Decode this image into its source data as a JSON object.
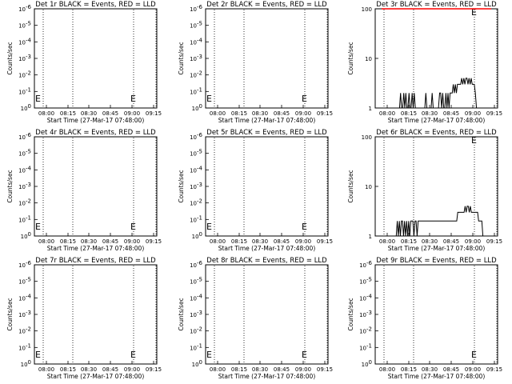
{
  "chart_data": [
    {
      "type": "line",
      "title": "Det 1r BLACK = Events, RED = LLD",
      "xlabel": "Start Time (27-Mar-17 07:48:00)",
      "ylabel": "Counts/sec",
      "y_scale": "log",
      "y_ticks": [
        {
          "base": "10",
          "exp": "0"
        },
        {
          "base": "10",
          "exp": "-1"
        },
        {
          "base": "10",
          "exp": "-2"
        },
        {
          "base": "10",
          "exp": "-3"
        },
        {
          "base": "10",
          "exp": "-4"
        },
        {
          "base": "10",
          "exp": "-5"
        },
        {
          "base": "10",
          "exp": "-6"
        }
      ],
      "x_ticks": [
        "08:00",
        "08:15",
        "08:30",
        "08:45",
        "09:00",
        "09:15"
      ],
      "markers": [
        "E",
        "E"
      ],
      "series": []
    },
    {
      "type": "line",
      "title": "Det 2r BLACK = Events, RED = LLD",
      "xlabel": "Start Time (27-Mar-17 07:48:00)",
      "ylabel": "Counts/sec",
      "y_scale": "log",
      "y_ticks": [
        {
          "base": "10",
          "exp": "0"
        },
        {
          "base": "10",
          "exp": "-1"
        },
        {
          "base": "10",
          "exp": "-2"
        },
        {
          "base": "10",
          "exp": "-3"
        },
        {
          "base": "10",
          "exp": "-4"
        },
        {
          "base": "10",
          "exp": "-5"
        },
        {
          "base": "10",
          "exp": "-6"
        }
      ],
      "x_ticks": [
        "08:00",
        "08:15",
        "08:30",
        "08:45",
        "09:00",
        "09:15"
      ],
      "markers": [
        "E",
        "E"
      ],
      "series": []
    },
    {
      "type": "line",
      "title": "Det 3r BLACK = Events, RED = LLD",
      "xlabel": "Start Time (27-Mar-17 07:48:00)",
      "ylabel": "Counts/sec",
      "y_scale": "log",
      "y_ticks": [
        {
          "base": "1",
          "exp": ""
        },
        {
          "base": "10",
          "exp": ""
        },
        {
          "base": "100",
          "exp": ""
        }
      ],
      "x_ticks": [
        "08:00",
        "08:15",
        "08:30",
        "08:45",
        "09:00",
        "09:15"
      ],
      "markers": [
        "E"
      ],
      "series": [
        {
          "color": "#000000",
          "values": [
            1,
            1,
            1,
            1,
            1,
            1,
            1,
            1,
            1,
            1,
            1,
            1,
            1,
            1,
            1,
            1,
            1,
            1,
            2,
            1,
            1,
            2,
            1,
            2,
            1,
            1,
            2,
            1,
            1,
            2,
            1,
            2,
            1,
            1,
            1,
            1,
            1,
            1,
            1,
            1,
            1,
            1,
            2,
            1,
            1,
            1,
            1,
            1,
            2,
            1,
            1,
            1,
            1,
            1,
            1,
            2,
            2,
            1,
            2,
            1,
            1,
            2,
            1,
            2,
            1,
            2,
            2,
            2,
            3,
            2,
            3,
            2,
            3,
            3,
            3,
            3,
            4,
            3,
            4,
            3,
            4,
            4,
            3,
            4,
            3,
            4,
            3,
            3,
            3,
            2,
            1,
            1,
            1,
            1,
            1,
            1,
            1,
            1,
            1,
            1,
            1,
            1,
            1,
            1,
            1
          ]
        },
        {
          "color": "#ff0000",
          "values": [
            100,
            100,
            100,
            100,
            100,
            100,
            100,
            100,
            100,
            100,
            100,
            100,
            100,
            100,
            100,
            100,
            100,
            100,
            100,
            100,
            100,
            100,
            100,
            100,
            100,
            100,
            100,
            100,
            100,
            100,
            100,
            100,
            100,
            100,
            100,
            100,
            100,
            100,
            100,
            100,
            100,
            100,
            100,
            100,
            100,
            100,
            100,
            100,
            100,
            100,
            100,
            100,
            100,
            100,
            100,
            100,
            100,
            100,
            100,
            100,
            100,
            100,
            100,
            100,
            100,
            100,
            100,
            100,
            100,
            100,
            100,
            100,
            100,
            100,
            100,
            100,
            100,
            100,
            100,
            100,
            100,
            100,
            100,
            100,
            100,
            100,
            100,
            100,
            100,
            100,
            100,
            100,
            100,
            100,
            100,
            100,
            100,
            100,
            100,
            100,
            100,
            100,
            100,
            100,
            100
          ]
        }
      ]
    },
    {
      "type": "line",
      "title": "Det 4r BLACK = Events, RED = LLD",
      "xlabel": "Start Time (27-Mar-17 07:48:00)",
      "ylabel": "Counts/sec",
      "y_scale": "log",
      "y_ticks": [
        {
          "base": "10",
          "exp": "0"
        },
        {
          "base": "10",
          "exp": "-1"
        },
        {
          "base": "10",
          "exp": "-2"
        },
        {
          "base": "10",
          "exp": "-3"
        },
        {
          "base": "10",
          "exp": "-4"
        },
        {
          "base": "10",
          "exp": "-5"
        },
        {
          "base": "10",
          "exp": "-6"
        }
      ],
      "x_ticks": [
        "08:00",
        "08:15",
        "08:30",
        "08:45",
        "09:00",
        "09:15"
      ],
      "markers": [
        "E",
        "E"
      ],
      "series": []
    },
    {
      "type": "line",
      "title": "Det 5r BLACK = Events, RED = LLD",
      "xlabel": "Start Time (27-Mar-17 07:48:00)",
      "ylabel": "Counts/sec",
      "y_scale": "log",
      "y_ticks": [
        {
          "base": "10",
          "exp": "0"
        },
        {
          "base": "10",
          "exp": "-1"
        },
        {
          "base": "10",
          "exp": "-2"
        },
        {
          "base": "10",
          "exp": "-3"
        },
        {
          "base": "10",
          "exp": "-4"
        },
        {
          "base": "10",
          "exp": "-5"
        },
        {
          "base": "10",
          "exp": "-6"
        }
      ],
      "x_ticks": [
        "08:00",
        "08:15",
        "08:30",
        "08:45",
        "09:00",
        "09:15"
      ],
      "markers": [
        "E",
        "E"
      ],
      "series": []
    },
    {
      "type": "line",
      "title": "Det 6r BLACK = Events, RED = LLD",
      "xlabel": "Start Time (27-Mar-17 07:48:00)",
      "ylabel": "Counts/sec",
      "y_scale": "log",
      "y_ticks": [
        {
          "base": "1",
          "exp": ""
        },
        {
          "base": "10",
          "exp": ""
        },
        {
          "base": "100",
          "exp": ""
        }
      ],
      "x_ticks": [
        "08:00",
        "08:15",
        "08:30",
        "08:45",
        "09:00",
        "09:15"
      ],
      "markers": [
        "E"
      ],
      "series": [
        {
          "color": "#000000",
          "values": [
            1,
            1,
            1,
            1,
            1,
            1,
            1,
            1,
            1,
            1,
            1,
            1,
            1,
            1,
            1,
            2,
            1,
            2,
            1,
            2,
            2,
            1,
            2,
            1,
            2,
            1,
            2,
            1,
            2,
            2,
            2,
            1,
            2,
            2,
            1,
            2,
            2,
            2,
            2,
            2,
            2,
            2,
            2,
            2,
            2,
            2,
            2,
            2,
            2,
            2,
            2,
            2,
            2,
            2,
            2,
            2,
            2,
            2,
            2,
            2,
            2,
            2,
            2,
            2,
            2,
            2,
            2,
            2,
            2,
            2,
            2,
            2,
            2,
            3,
            3,
            3,
            3,
            3,
            3,
            3,
            4,
            3,
            4,
            4,
            3,
            4,
            3,
            3,
            3,
            3,
            3,
            3,
            3,
            2,
            2,
            2,
            2,
            1,
            1,
            1,
            1,
            1,
            1,
            1,
            1,
            1
          ]
        }
      ]
    },
    {
      "type": "line",
      "title": "Det 7r BLACK = Events, RED = LLD",
      "xlabel": "Start Time (27-Mar-17 07:48:00)",
      "ylabel": "Counts/sec",
      "y_scale": "log",
      "y_ticks": [
        {
          "base": "10",
          "exp": "0"
        },
        {
          "base": "10",
          "exp": "-1"
        },
        {
          "base": "10",
          "exp": "-2"
        },
        {
          "base": "10",
          "exp": "-3"
        },
        {
          "base": "10",
          "exp": "-4"
        },
        {
          "base": "10",
          "exp": "-5"
        },
        {
          "base": "10",
          "exp": "-6"
        }
      ],
      "x_ticks": [
        "08:00",
        "08:15",
        "08:30",
        "08:45",
        "09:00",
        "09:15"
      ],
      "markers": [
        "E",
        "E"
      ],
      "series": []
    },
    {
      "type": "line",
      "title": "Det 8r BLACK = Events, RED = LLD",
      "xlabel": "Start Time (27-Mar-17 07:48:00)",
      "ylabel": "Counts/sec",
      "y_scale": "log",
      "y_ticks": [
        {
          "base": "10",
          "exp": "0"
        },
        {
          "base": "10",
          "exp": "-1"
        },
        {
          "base": "10",
          "exp": "-2"
        },
        {
          "base": "10",
          "exp": "-3"
        },
        {
          "base": "10",
          "exp": "-4"
        },
        {
          "base": "10",
          "exp": "-5"
        },
        {
          "base": "10",
          "exp": "-6"
        }
      ],
      "x_ticks": [
        "08:00",
        "08:15",
        "08:30",
        "08:45",
        "09:00",
        "09:15"
      ],
      "markers": [
        "E",
        "E"
      ],
      "series": []
    },
    {
      "type": "line",
      "title": "Det 9r BLACK = Events, RED = LLD",
      "xlabel": "Start Time (27-Mar-17 07:48:00)",
      "ylabel": "Counts/sec",
      "y_scale": "log",
      "y_ticks": [
        {
          "base": "10",
          "exp": "0"
        },
        {
          "base": "10",
          "exp": "-1"
        },
        {
          "base": "10",
          "exp": "-2"
        },
        {
          "base": "10",
          "exp": "-3"
        },
        {
          "base": "10",
          "exp": "-4"
        },
        {
          "base": "10",
          "exp": "-5"
        },
        {
          "base": "10",
          "exp": "-6"
        }
      ],
      "x_ticks": [
        "08:00",
        "08:15",
        "08:30",
        "08:45",
        "09:00",
        "09:15"
      ],
      "markers": [
        "E"
      ],
      "series": []
    }
  ]
}
